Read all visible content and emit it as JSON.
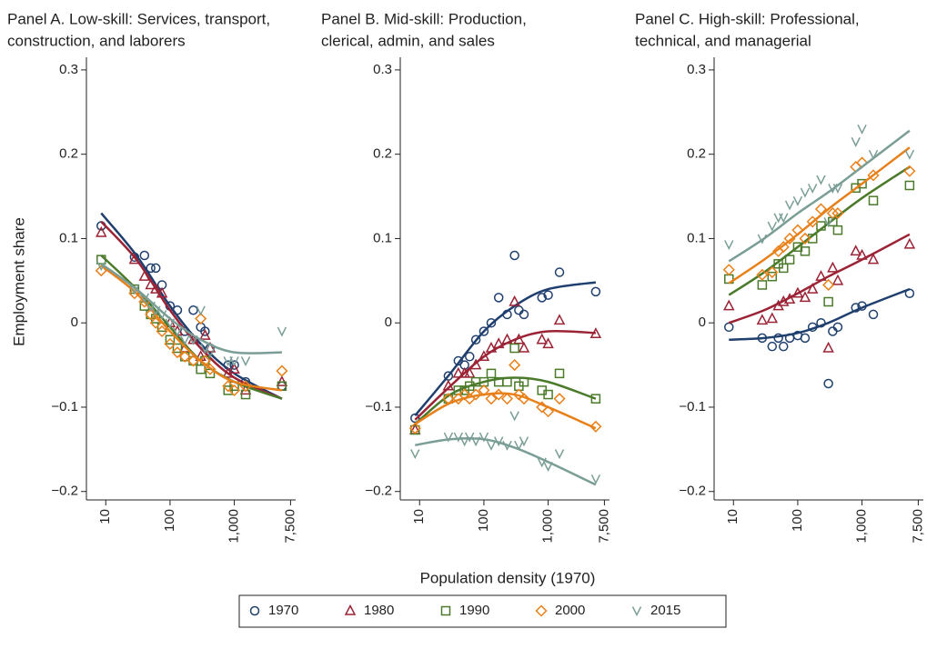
{
  "x_label": "Population density (1970)",
  "chart_data": [
    {
      "type": "scatter",
      "title": [
        "Panel A. Low-skill: Services, transport,",
        "construction, and laborers"
      ],
      "y_label": "Employment share",
      "x_log": true,
      "xlim": [
        5,
        9000
      ],
      "xticks": [
        10,
        100,
        {
          "value": 1000,
          "label": "1,000"
        },
        {
          "value": 7500,
          "label": "7,500"
        }
      ],
      "ylim": [
        -0.21,
        0.315
      ],
      "yticks": [
        0.3,
        0.2,
        0.1,
        0,
        {
          "value": -0.1,
          "label": "−0.1"
        },
        {
          "value": -0.2,
          "label": "−0.2"
        }
      ],
      "x": [
        8.5,
        28,
        40,
        50,
        60,
        75,
        100,
        130,
        170,
        230,
        300,
        350,
        420,
        800,
        1000,
        1500,
        5500
      ],
      "fit_x": [
        8.5,
        30,
        100,
        300,
        1000,
        5500
      ],
      "series": [
        {
          "name": "1970",
          "color": "#1f3f6e",
          "marker": "circle",
          "values": [
            0.115,
            0.078,
            0.08,
            0.065,
            0.065,
            0.045,
            0.02,
            0.015,
            -0.01,
            0.015,
            -0.005,
            -0.01,
            -0.03,
            -0.05,
            -0.05,
            -0.07,
            -0.075
          ],
          "fit": [
            0.13,
            0.08,
            0.02,
            -0.025,
            -0.06,
            -0.09
          ]
        },
        {
          "name": "1980",
          "color": "#9b2335",
          "marker": "triangle",
          "values": [
            0.107,
            0.075,
            0.055,
            0.045,
            0.04,
            0.035,
            0.0,
            -0.01,
            -0.03,
            -0.02,
            -0.04,
            -0.015,
            -0.03,
            -0.06,
            -0.055,
            -0.08,
            -0.07
          ],
          "fit": [
            0.12,
            0.075,
            0.015,
            -0.03,
            -0.065,
            -0.09
          ]
        },
        {
          "name": "1990",
          "color": "#4a7a2a",
          "marker": "square",
          "values": [
            0.075,
            0.04,
            0.02,
            0.01,
            0.005,
            -0.005,
            -0.02,
            -0.03,
            -0.04,
            -0.045,
            -0.055,
            -0.045,
            -0.06,
            -0.08,
            -0.075,
            -0.085,
            -0.075
          ],
          "fit": [
            0.08,
            0.04,
            -0.005,
            -0.045,
            -0.07,
            -0.09
          ]
        },
        {
          "name": "2000",
          "color": "#e8801a",
          "marker": "diamond",
          "values": [
            0.062,
            0.035,
            0.025,
            0.01,
            0.0,
            -0.01,
            -0.025,
            -0.035,
            -0.04,
            -0.045,
            0.005,
            -0.045,
            -0.055,
            -0.075,
            -0.08,
            -0.075,
            -0.057
          ],
          "fit": [
            0.068,
            0.035,
            -0.01,
            -0.045,
            -0.07,
            -0.08
          ]
        },
        {
          "name": "2015",
          "color": "#7a9e96",
          "marker": "vee",
          "values": [
            0.068,
            0.04,
            0.03,
            0.02,
            0.015,
            0.01,
            0.0,
            -0.01,
            -0.02,
            -0.02,
            0.015,
            -0.03,
            -0.035,
            -0.045,
            -0.045,
            -0.045,
            -0.01
          ],
          "fit": [
            0.07,
            0.04,
            0.005,
            -0.02,
            -0.035,
            -0.035
          ]
        }
      ]
    },
    {
      "type": "scatter",
      "title": [
        "Panel B. Mid-skill: Production,",
        "clerical, admin, and sales"
      ],
      "x_log": true,
      "xlim": [
        5,
        9000
      ],
      "xticks": [
        10,
        100,
        {
          "value": 1000,
          "label": "1,000"
        },
        {
          "value": 7500,
          "label": "7,500"
        }
      ],
      "ylim": [
        -0.21,
        0.315
      ],
      "yticks": [
        0.3,
        0.2,
        0.1,
        0,
        {
          "value": -0.1,
          "label": "−0.1"
        },
        {
          "value": -0.2,
          "label": "−0.2"
        }
      ],
      "x": [
        8.5,
        28,
        40,
        50,
        60,
        75,
        100,
        130,
        170,
        230,
        300,
        350,
        420,
        800,
        1000,
        1500,
        5500
      ],
      "fit_x": [
        8.5,
        30,
        100,
        300,
        1000,
        5500
      ],
      "series": [
        {
          "name": "1970",
          "color": "#1f3f6e",
          "marker": "circle",
          "values": [
            -0.113,
            -0.063,
            -0.045,
            -0.05,
            -0.04,
            -0.02,
            -0.01,
            0.0,
            0.03,
            0.01,
            0.08,
            0.015,
            0.01,
            0.03,
            0.033,
            0.06,
            0.037
          ],
          "fit": [
            -0.11,
            -0.06,
            -0.01,
            0.02,
            0.04,
            0.048
          ]
        },
        {
          "name": "1980",
          "color": "#9b2335",
          "marker": "triangle",
          "values": [
            -0.127,
            -0.075,
            -0.06,
            -0.06,
            -0.06,
            -0.05,
            -0.04,
            -0.03,
            -0.025,
            -0.02,
            0.025,
            -0.02,
            -0.03,
            -0.02,
            -0.025,
            0.003,
            -0.013
          ],
          "fit": [
            -0.115,
            -0.075,
            -0.04,
            -0.02,
            -0.01,
            -0.012
          ]
        },
        {
          "name": "1990",
          "color": "#4a7a2a",
          "marker": "square",
          "values": [
            -0.127,
            -0.09,
            -0.08,
            -0.08,
            -0.075,
            -0.07,
            -0.07,
            -0.06,
            -0.07,
            -0.07,
            -0.03,
            -0.075,
            -0.07,
            -0.08,
            -0.085,
            -0.06,
            -0.09
          ],
          "fit": [
            -0.12,
            -0.085,
            -0.07,
            -0.065,
            -0.07,
            -0.09
          ]
        },
        {
          "name": "2000",
          "color": "#e8801a",
          "marker": "diamond",
          "values": [
            -0.125,
            -0.09,
            -0.09,
            -0.085,
            -0.09,
            -0.085,
            -0.08,
            -0.09,
            -0.085,
            -0.09,
            -0.05,
            -0.085,
            -0.09,
            -0.1,
            -0.105,
            -0.09,
            -0.123
          ],
          "fit": [
            -0.12,
            -0.095,
            -0.085,
            -0.085,
            -0.1,
            -0.125
          ]
        },
        {
          "name": "2015",
          "color": "#7a9e96",
          "marker": "vee",
          "values": [
            -0.155,
            -0.135,
            -0.135,
            -0.14,
            -0.135,
            -0.14,
            -0.135,
            -0.145,
            -0.14,
            -0.145,
            -0.11,
            -0.145,
            -0.14,
            -0.165,
            -0.17,
            -0.155,
            -0.185
          ],
          "fit": [
            -0.145,
            -0.138,
            -0.138,
            -0.148,
            -0.165,
            -0.192
          ]
        }
      ]
    },
    {
      "type": "scatter",
      "title": [
        "Panel C. High-skill: Professional,",
        "technical, and managerial"
      ],
      "x_log": true,
      "xlim": [
        5,
        9000
      ],
      "xticks": [
        10,
        100,
        {
          "value": 1000,
          "label": "1,000"
        },
        {
          "value": 7500,
          "label": "7,500"
        }
      ],
      "ylim": [
        -0.21,
        0.315
      ],
      "yticks": [
        0.3,
        0.2,
        0.1,
        0,
        {
          "value": -0.1,
          "label": "−0.1"
        },
        {
          "value": -0.2,
          "label": "−0.2"
        }
      ],
      "x": [
        8.5,
        28,
        40,
        50,
        60,
        75,
        100,
        130,
        170,
        230,
        300,
        350,
        420,
        800,
        1000,
        1500,
        5500
      ],
      "fit_x": [
        8.5,
        30,
        100,
        300,
        1000,
        5500
      ],
      "series": [
        {
          "name": "1970",
          "color": "#1f3f6e",
          "marker": "circle",
          "values": [
            -0.005,
            -0.018,
            -0.028,
            -0.018,
            -0.028,
            -0.018,
            -0.015,
            -0.018,
            -0.005,
            0.0,
            -0.072,
            -0.01,
            -0.005,
            0.018,
            0.02,
            0.01,
            0.035
          ],
          "fit": [
            -0.02,
            -0.018,
            -0.012,
            0.0,
            0.018,
            0.04
          ]
        },
        {
          "name": "1980",
          "color": "#9b2335",
          "marker": "triangle",
          "values": [
            0.02,
            0.003,
            0.005,
            0.02,
            0.025,
            0.028,
            0.035,
            0.03,
            0.04,
            0.055,
            -0.03,
            0.065,
            0.05,
            0.085,
            0.08,
            0.075,
            0.093
          ],
          "fit": [
            0.0,
            0.015,
            0.035,
            0.055,
            0.075,
            0.105
          ]
        },
        {
          "name": "1990",
          "color": "#4a7a2a",
          "marker": "square",
          "values": [
            0.052,
            0.045,
            0.055,
            0.07,
            0.065,
            0.075,
            0.09,
            0.085,
            0.1,
            0.115,
            0.025,
            0.12,
            0.11,
            0.16,
            0.165,
            0.145,
            0.163
          ],
          "fit": [
            0.033,
            0.06,
            0.09,
            0.118,
            0.148,
            0.185
          ]
        },
        {
          "name": "2000",
          "color": "#e8801a",
          "marker": "diamond",
          "values": [
            0.063,
            0.057,
            0.06,
            0.085,
            0.09,
            0.1,
            0.11,
            0.1,
            0.12,
            0.135,
            0.045,
            0.13,
            0.13,
            0.185,
            0.19,
            0.175,
            0.18
          ],
          "fit": [
            0.047,
            0.075,
            0.105,
            0.135,
            0.165,
            0.208
          ]
        },
        {
          "name": "2015",
          "color": "#7a9e96",
          "marker": "vee",
          "values": [
            0.093,
            0.1,
            0.115,
            0.125,
            0.125,
            0.14,
            0.145,
            0.155,
            0.16,
            0.17,
            0.12,
            0.16,
            0.16,
            0.215,
            0.23,
            0.2,
            0.2
          ],
          "fit": [
            0.073,
            0.1,
            0.13,
            0.155,
            0.185,
            0.228
          ]
        }
      ]
    }
  ]
}
